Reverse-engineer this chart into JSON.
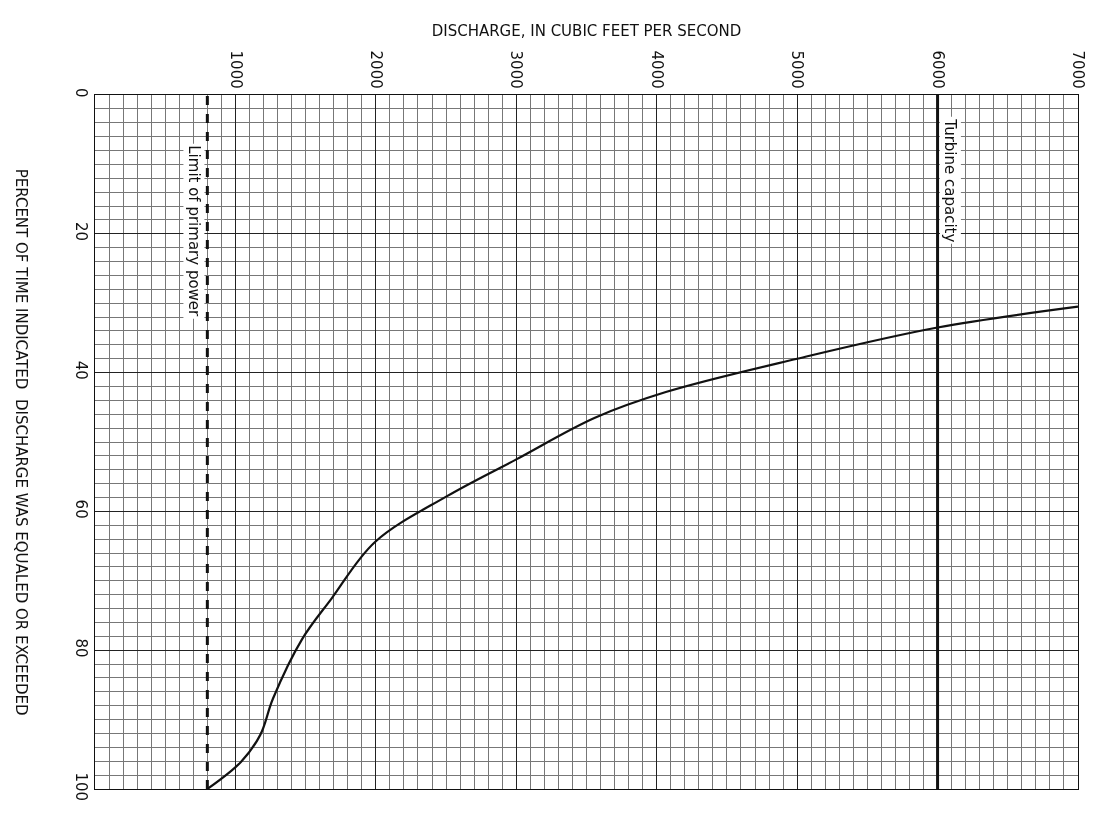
{
  "chart_data": {
    "type": "line",
    "xlabel": "DISCHARGE, IN CUBIC FEET PER SECOND",
    "ylabel": "PERCENT OF TIME INDICATED  DISCHARGE WAS EQUALED OR EXCEEDED",
    "series": [
      {
        "color": "#111111",
        "x": [
          7000,
          6000,
          5000,
          4065,
          3560,
          3000,
          2507,
          1994,
          1683,
          1475,
          1267,
          1177,
          1039,
          800
        ],
        "values": [
          30.5,
          33.5,
          38,
          42.8,
          46.5,
          52.5,
          57.8,
          64.4,
          72.6,
          78.4,
          87,
          92.2,
          96.1,
          100
        ]
      }
    ],
    "xlim": [
      0,
      7000
    ],
    "xticks": [
      1000,
      2000,
      3000,
      4000,
      5000,
      6000,
      7000
    ],
    "ylim": [
      100,
      0
    ],
    "yticks": [
      0,
      20,
      40,
      60,
      80,
      100
    ],
    "ref_lines": [
      {
        "axis": "x",
        "value": 800,
        "label": "Limit of primary power",
        "line_style": "dashed",
        "color": "#111111"
      },
      {
        "axis": "x",
        "value": 6000,
        "label": "Turbine capacity",
        "line_style": "solid",
        "color": "#111111"
      }
    ],
    "grid": true,
    "marker": "none",
    "line_style": "solid"
  }
}
